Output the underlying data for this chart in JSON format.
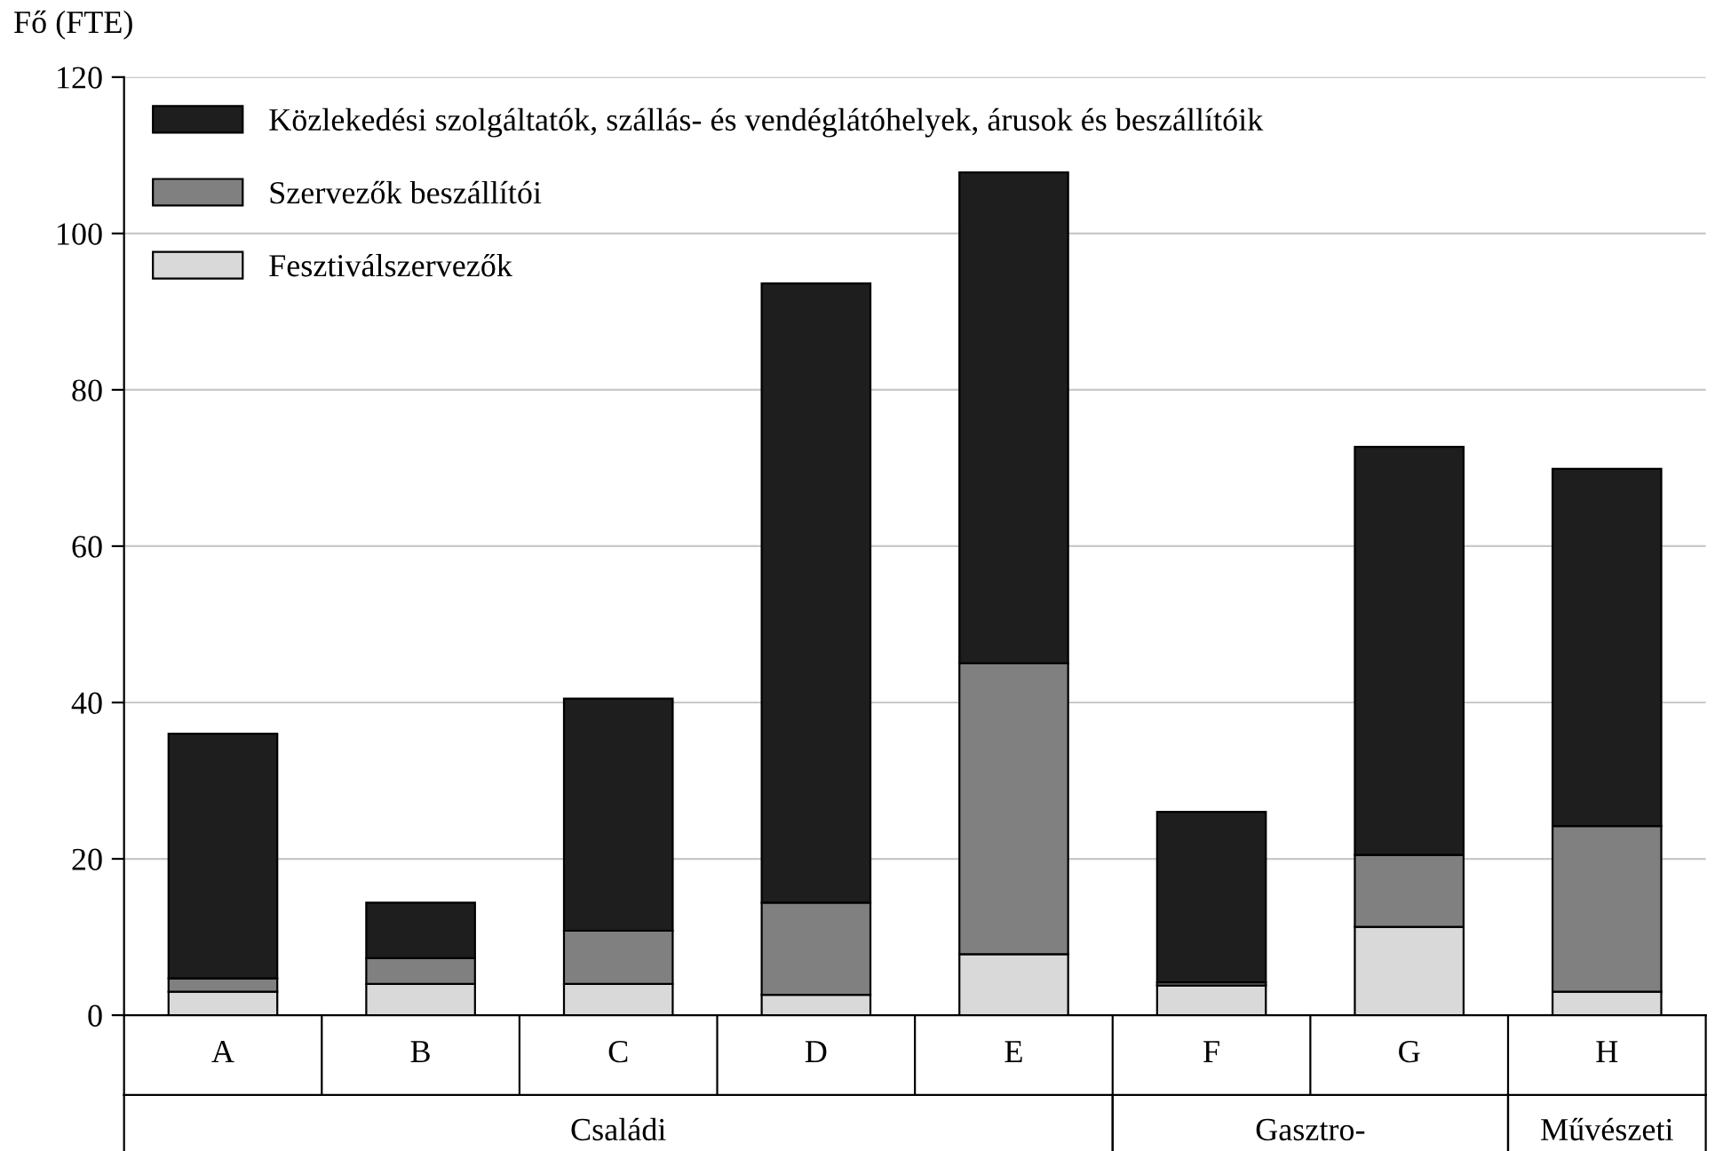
{
  "chart_data": {
    "type": "bar",
    "stacked": true,
    "ylabel": "Fő (FTE)",
    "categories": [
      "A",
      "B",
      "C",
      "D",
      "E",
      "F",
      "G",
      "H"
    ],
    "series": [
      {
        "name": "Fesztiválszervezők",
        "color": "#d9d9d9",
        "values": [
          3,
          4,
          4,
          2.6,
          7.8,
          3.8,
          11.3,
          3
        ]
      },
      {
        "name": "Szervezők beszállítói",
        "color": "#808080",
        "values": [
          1.7,
          3.3,
          6.8,
          11.8,
          37.2,
          0.4,
          9.2,
          21.2
        ]
      },
      {
        "name": "Közlekedési szolgáltatók, szállás- és vendéglátóhelyek, árusok és beszállítóik",
        "color": "#1e1e1e",
        "values": [
          31.3,
          7.1,
          29.7,
          79.2,
          62.8,
          21.8,
          52.2,
          45.7
        ]
      }
    ],
    "ylim": [
      0,
      120
    ],
    "yticks": [
      0,
      20,
      40,
      60,
      80,
      100,
      120
    ],
    "grid": "y",
    "legend": "top left",
    "annotations": [
      "Családi",
      "Gasztro-",
      "Művészeti"
    ]
  }
}
